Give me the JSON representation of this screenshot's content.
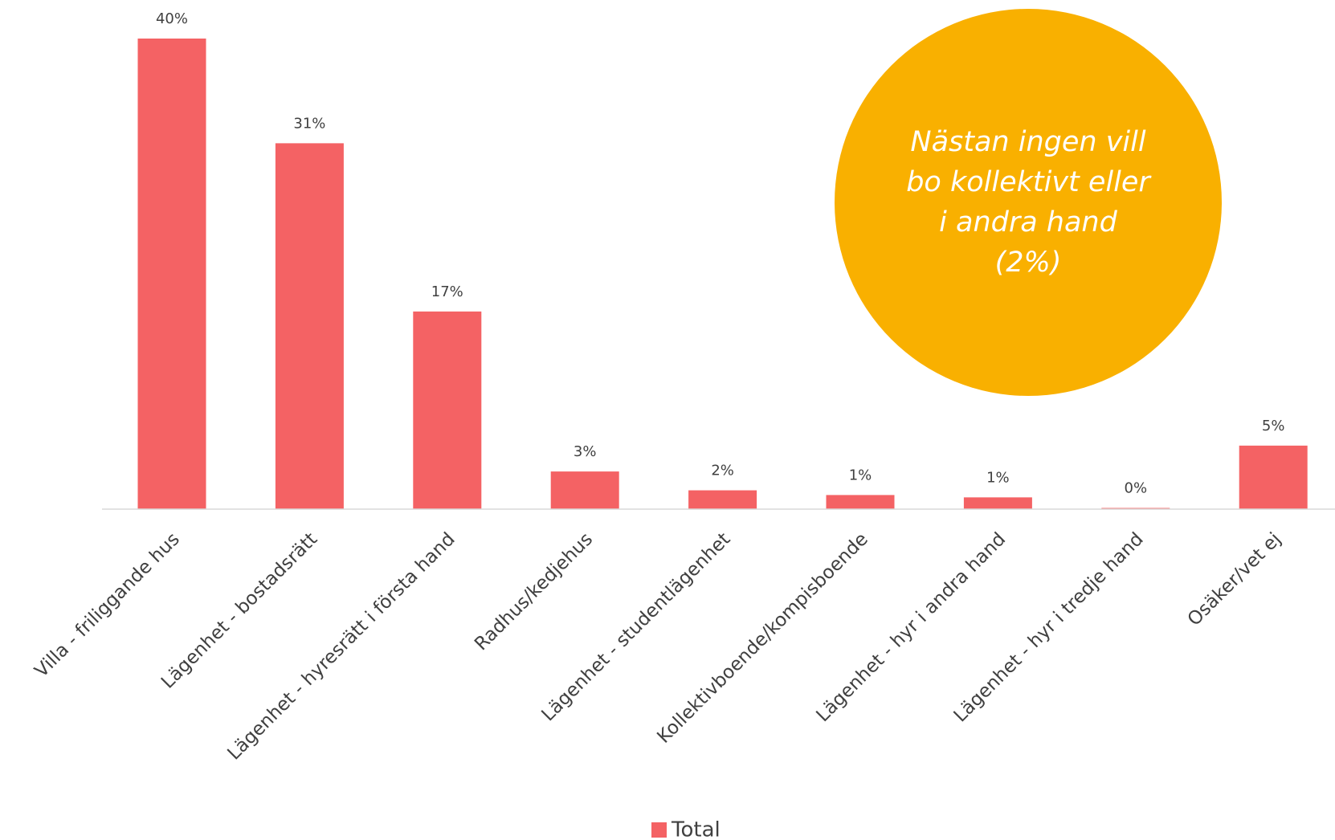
{
  "chart_data": {
    "type": "bar",
    "categories": [
      "Villa - friliggande hus",
      "Lägenhet - bostadsrätt",
      "Lägenhet - hyresrätt i första hand",
      "Radhus/kedjehus",
      "Lägenhet - studentlägenhet",
      "Kollektivboende/kompisboende",
      "Lägenhet - hyr i andra hand",
      "Lägenhet - hyr i tredje hand",
      "Osäker/vet ej"
    ],
    "series": [
      {
        "name": "Total",
        "color": "#f46264",
        "values": [
          40.0,
          31.1,
          16.8,
          3.2,
          1.6,
          1.2,
          1.0,
          0.1,
          5.4
        ],
        "value_labels": [
          "40%",
          "31%",
          "17%",
          "3%",
          "2%",
          "1%",
          "1%",
          "0%",
          "5%"
        ]
      }
    ],
    "annotation": {
      "lines": [
        "Nästan ingen vill",
        "bo kollektivt eller",
        "i andra hand",
        "(2%)"
      ],
      "color": "#f9b000"
    }
  }
}
